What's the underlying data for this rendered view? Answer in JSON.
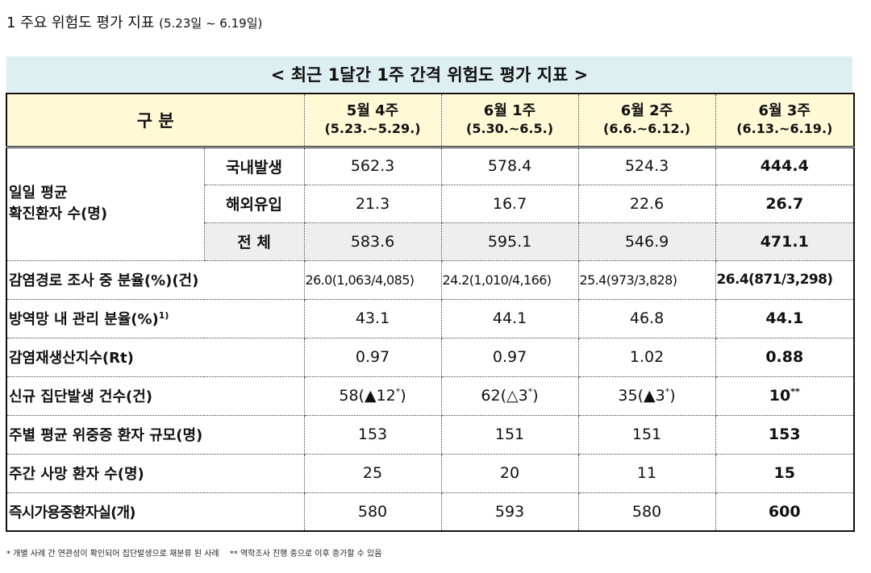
{
  "section": {
    "number": "1",
    "title": "주요 위험도 평가 지표",
    "range": "(5.23일 ~ 6.19일)"
  },
  "banner": "< 최근 1달간 1주 간격 위험도 평가 지표 >",
  "header": {
    "category": "구 분",
    "weeks": [
      {
        "label": "5월 4주",
        "dates": "(5.23.~5.29.)"
      },
      {
        "label": "6월 1주",
        "dates": "(5.30.~6.5.)"
      },
      {
        "label": "6월 2주",
        "dates": "(6.6.~6.12.)"
      },
      {
        "label": "6월 3주",
        "dates": "(6.13.~6.19.)"
      }
    ]
  },
  "daily": {
    "group_line1": "일일 평균",
    "group_line2": "확진환자 수(명)",
    "rows": [
      {
        "label": "국내발생",
        "values": [
          "562.3",
          "578.4",
          "524.3",
          "444.4"
        ]
      },
      {
        "label": "해외유입",
        "values": [
          "21.3",
          "16.7",
          "22.6",
          "26.7"
        ]
      },
      {
        "label": "전 체",
        "values": [
          "583.6",
          "595.1",
          "546.9",
          "471.1"
        ]
      }
    ]
  },
  "rows": {
    "path": {
      "label": "감염경로 조사 중 분율(%)(건)",
      "values": [
        "26.0(1,063/4,085)",
        "24.2(1,010/4,166)",
        "25.4(973/3,828)",
        "26.4(871/3,298)"
      ]
    },
    "managed": {
      "label": "방역망 내 관리 분율(%)",
      "note": "1)",
      "values": [
        "43.1",
        "44.1",
        "46.8",
        "44.1"
      ]
    },
    "rt": {
      "label": "감염재생산지수(Rt)",
      "values": [
        "0.97",
        "0.97",
        "1.02",
        "0.88"
      ]
    },
    "clusters": {
      "label": "신규 집단발생 건수(건)",
      "values": [
        {
          "main": "58(▲12",
          "mark": "*",
          "tail": ")"
        },
        {
          "main": "62(△3",
          "mark": "*",
          "tail": ")"
        },
        {
          "main": "35(▲3",
          "mark": "*",
          "tail": ")"
        },
        {
          "main": "10",
          "mark": "**",
          "tail": ""
        }
      ]
    },
    "severe": {
      "label": "주별 평균 위중증 환자 규모(명)",
      "values": [
        "153",
        "151",
        "151",
        "153"
      ]
    },
    "deaths": {
      "label": "주간 사망 환자 수(명)",
      "values": [
        "25",
        "20",
        "11",
        "15"
      ]
    },
    "beds": {
      "label": "즉시가용중환자실(개)",
      "values": [
        "580",
        "593",
        "580",
        "600"
      ]
    }
  },
  "footnotes": {
    "one": "* 개별 사례 간 연관성이 확인되어 집단발생으로 재분류 된 사례",
    "two": "** 역학조사 진행 중으로 이후 증가할 수 있음"
  }
}
